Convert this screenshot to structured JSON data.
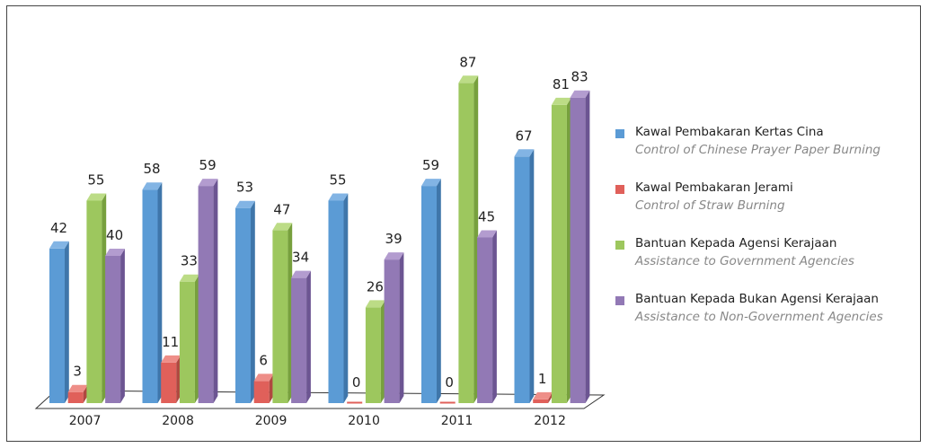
{
  "colors": {
    "series_fill": [
      "#5b9bd5",
      "#e0605a",
      "#9dc75e",
      "#9279b5"
    ],
    "series_side": [
      "#3f76aa",
      "#b04840",
      "#77a03d",
      "#6c5592"
    ],
    "series_top": [
      "#82b4e4",
      "#ee8e88",
      "#bcdc86",
      "#b39ccf"
    ]
  },
  "chart_data": {
    "type": "bar",
    "categories": [
      "2007",
      "2008",
      "2009",
      "2010",
      "2011",
      "2012"
    ],
    "series": [
      {
        "name": "Kawal Pembakaran Kertas Cina",
        "subtitle": "Control of Chinese Prayer Paper Burning",
        "values": [
          42,
          58,
          53,
          55,
          59,
          67
        ]
      },
      {
        "name": "Kawal Pembakaran Jerami",
        "subtitle": "Control of Straw Burning",
        "values": [
          3,
          11,
          6,
          0,
          0,
          1
        ]
      },
      {
        "name": "Bantuan Kepada Agensi Kerajaan",
        "subtitle": "Assistance to Government Agencies",
        "values": [
          55,
          33,
          47,
          26,
          87,
          81
        ]
      },
      {
        "name": "Bantuan Kepada Bukan Agensi Kerajaan",
        "subtitle": "Assistance to Non-Government Agencies",
        "values": [
          40,
          59,
          34,
          39,
          45,
          83
        ]
      }
    ],
    "ylim": [
      0,
      90
    ],
    "grid": false,
    "legend": "right",
    "data_labels": true
  }
}
